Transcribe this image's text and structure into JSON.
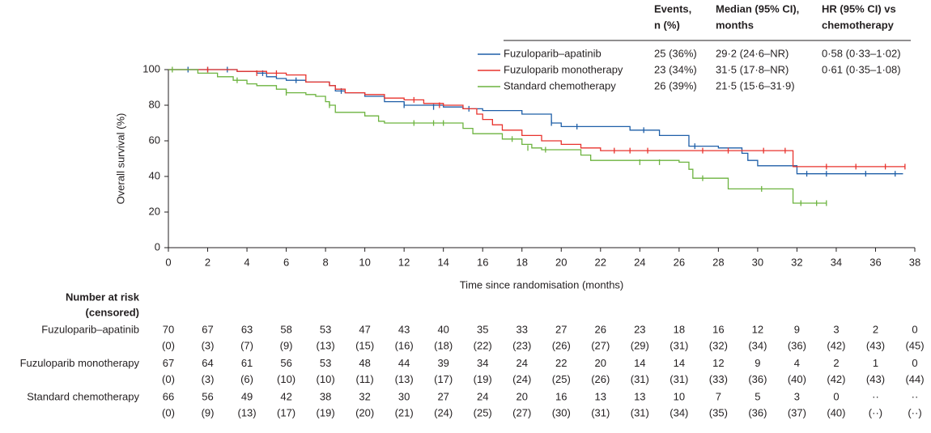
{
  "chart_data": {
    "type": "line",
    "drawstyle": "steps-post",
    "xlabel": "Time since randomisation (months)",
    "ylabel": "Overall survival (%)",
    "xlim": [
      0,
      38
    ],
    "xticks": [
      0,
      2,
      4,
      6,
      8,
      10,
      12,
      14,
      16,
      18,
      20,
      22,
      24,
      26,
      28,
      30,
      32,
      34,
      36,
      38
    ],
    "ylim": [
      0,
      100
    ],
    "yticks": [
      0,
      20,
      40,
      60,
      80,
      100
    ],
    "legend_headers": [
      [
        "Events,",
        "n (%)"
      ],
      [
        "Median (95% CI),",
        "months"
      ],
      [
        "HR (95% CI) vs",
        "chemotherapy"
      ]
    ],
    "series": [
      {
        "name": "Fuzuloparib–apatinib",
        "color": "#1f5fa8",
        "events": "25 (36%)",
        "median": "29·2 (24·6–NR)",
        "hr": "0·58 (0·33–1·02)",
        "x": [
          0,
          3.5,
          4.5,
          5,
          5.5,
          6,
          7,
          8.2,
          8.5,
          9,
          10,
          11,
          12,
          14,
          15,
          16,
          17,
          18,
          19.5,
          20,
          23.5,
          25,
          26.5,
          28,
          29.2,
          29.5,
          30,
          32,
          37.4
        ],
        "values": [
          100,
          99,
          98,
          96,
          95,
          94,
          93,
          91,
          88,
          87,
          85,
          82,
          80,
          79,
          78,
          77,
          77,
          75,
          70,
          68,
          66,
          63,
          57,
          56,
          53,
          49,
          46,
          41.5,
          41.5
        ],
        "censor_x": [
          1,
          2,
          3,
          4.8,
          6.5,
          8.8,
          12,
          13.5,
          15.3,
          19.5,
          20.8,
          24.2,
          26.8,
          32.5,
          33.5,
          35.5,
          37
        ],
        "censor_values": [
          100,
          100,
          100,
          98,
          94,
          88,
          80,
          79,
          78,
          70,
          68,
          66,
          57,
          41.5,
          41.5,
          41.5,
          41.5
        ]
      },
      {
        "name": "Fuzuloparib monotherapy",
        "color": "#e8332d",
        "events": "23 (34%)",
        "median": "31·5 (17·8–NR)",
        "hr": "0·61 (0·35–1·08)",
        "x": [
          0,
          3.5,
          5,
          6,
          7,
          8.2,
          8.5,
          9,
          10,
          11,
          12,
          13,
          14,
          15,
          15.7,
          16,
          16.5,
          17,
          18,
          19,
          20,
          21,
          22,
          31.8,
          37.5
        ],
        "values": [
          100,
          99,
          98,
          97,
          93,
          91,
          89,
          87,
          86,
          84,
          83,
          81,
          80,
          78,
          75,
          72,
          69,
          66,
          63,
          60,
          58,
          56,
          54.5,
          45.5,
          45.5
        ],
        "censor_x": [
          2,
          4.5,
          5.5,
          12.5,
          13.8,
          22.7,
          23.5,
          24.4,
          27.2,
          28.5,
          30.3,
          31.4,
          33.5,
          35,
          36.5,
          37.5
        ],
        "censor_values": [
          100,
          98,
          98,
          83,
          80,
          54.5,
          54.5,
          54.5,
          54.5,
          54.5,
          54.5,
          54.5,
          45.5,
          45.5,
          45.5,
          45.5
        ]
      },
      {
        "name": "Standard chemotherapy",
        "color": "#6cb33f",
        "events": "26 (39%)",
        "median": "21·5 (15·6–31·9)",
        "x": [
          0,
          1.5,
          2.5,
          3.3,
          4,
          4.5,
          5.5,
          6,
          7,
          7.5,
          8,
          8.2,
          8.5,
          10,
          10.7,
          11,
          15,
          15.5,
          17,
          18,
          18.5,
          19,
          21,
          21.5,
          26,
          26.5,
          26.7,
          28.5,
          31.8,
          33.5
        ],
        "values": [
          100,
          98,
          96,
          94,
          92,
          91,
          89,
          87,
          86,
          85,
          82,
          80,
          76,
          74,
          71,
          70,
          67,
          64,
          61,
          58,
          56,
          55,
          52,
          49,
          48,
          44,
          39,
          33,
          25,
          25
        ],
        "censor_x": [
          0.2,
          3.5,
          6,
          8.2,
          12.5,
          13.5,
          14,
          17.5,
          18.3,
          19.2,
          24,
          25,
          27.2,
          30.2,
          32.2,
          33,
          33.5
        ],
        "censor_values": [
          100,
          94,
          87,
          80,
          70,
          70,
          70,
          61,
          56,
          55,
          48,
          48,
          39,
          33,
          25,
          25,
          25
        ]
      }
    ],
    "risk_table": {
      "title": [
        "Number at risk",
        "(censored)"
      ],
      "rows": [
        {
          "at_risk": [
            70,
            67,
            63,
            58,
            53,
            47,
            43,
            40,
            35,
            33,
            27,
            26,
            23,
            18,
            16,
            12,
            9,
            3,
            2,
            0
          ],
          "censored": [
            "(0)",
            "(3)",
            "(7)",
            "(9)",
            "(13)",
            "(15)",
            "(16)",
            "(18)",
            "(22)",
            "(23)",
            "(26)",
            "(27)",
            "(29)",
            "(31)",
            "(32)",
            "(34)",
            "(36)",
            "(42)",
            "(43)",
            "(45)"
          ]
        },
        {
          "at_risk": [
            67,
            64,
            61,
            56,
            53,
            48,
            44,
            39,
            34,
            24,
            22,
            20,
            14,
            14,
            12,
            9,
            4,
            2,
            1,
            0
          ],
          "censored": [
            "(0)",
            "(3)",
            "(6)",
            "(10)",
            "(10)",
            "(11)",
            "(13)",
            "(17)",
            "(19)",
            "(24)",
            "(25)",
            "(26)",
            "(31)",
            "(31)",
            "(33)",
            "(36)",
            "(40)",
            "(42)",
            "(43)",
            "(44)"
          ]
        },
        {
          "at_risk": [
            66,
            56,
            49,
            42,
            38,
            32,
            30,
            27,
            24,
            20,
            16,
            13,
            13,
            10,
            7,
            5,
            3,
            0,
            "··",
            "··"
          ],
          "censored": [
            "(0)",
            "(9)",
            "(13)",
            "(17)",
            "(19)",
            "(20)",
            "(21)",
            "(24)",
            "(25)",
            "(27)",
            "(30)",
            "(31)",
            "(31)",
            "(34)",
            "(35)",
            "(36)",
            "(37)",
            "(40)",
            "(··)",
            "(··)"
          ]
        }
      ]
    }
  }
}
